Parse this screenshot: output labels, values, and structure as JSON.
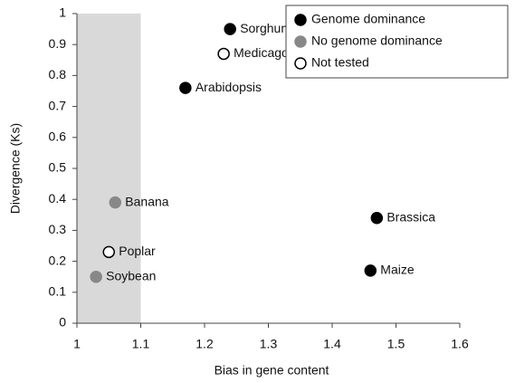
{
  "chart_data": {
    "type": "scatter",
    "x_label": "Bias in gene content",
    "y_label": "Divergence (Ks)",
    "xlim": [
      1,
      1.6
    ],
    "ylim": [
      0,
      1
    ],
    "xticks": [
      1,
      1.1,
      1.2,
      1.3,
      1.4,
      1.5,
      1.6
    ],
    "yticks": [
      0,
      0.1,
      0.2,
      0.3,
      0.4,
      0.5,
      0.6,
      0.7,
      0.8,
      0.9,
      1
    ],
    "shaded_region": {
      "x": [
        1,
        1.1
      ],
      "color": "#d9d9d9"
    },
    "legend": "upper right",
    "series": [
      {
        "name": "Genome dominance",
        "color": "#000000",
        "fill": "#000000",
        "x": [
          1.24,
          1.17,
          1.47,
          1.46
        ],
        "values": [
          0.95,
          0.76,
          0.34,
          0.17
        ],
        "point_labels": [
          "Sorghum",
          "Arabidopsis",
          "Brassica",
          "Maize"
        ]
      },
      {
        "name": "No genome dominance",
        "color": "#888888",
        "fill": "#888888",
        "x": [
          1.06,
          1.03
        ],
        "values": [
          0.39,
          0.15
        ],
        "point_labels": [
          "Banana",
          "Soybean"
        ]
      },
      {
        "name": "Not tested",
        "color": "#000000",
        "fill": "#ffffff",
        "x": [
          1.23,
          1.05
        ],
        "values": [
          0.87,
          0.23
        ],
        "point_labels": [
          "Medicago",
          "Poplar"
        ]
      }
    ]
  }
}
